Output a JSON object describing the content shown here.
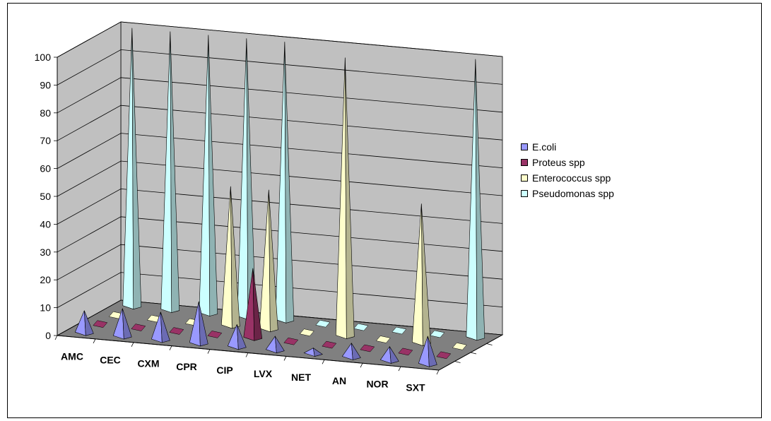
{
  "chart_data": {
    "type": "bar",
    "style": "3d-cone",
    "categories": [
      "AMC",
      "CEC",
      "CXM",
      "CPR",
      "CIP",
      "LVX",
      "NET",
      "AN",
      "NOR",
      "SXT"
    ],
    "series": [
      {
        "name": "E.coli",
        "color": "#9999ff",
        "values": [
          8,
          10,
          10,
          15,
          8,
          5,
          2,
          5,
          5,
          10
        ]
      },
      {
        "name": "Proteus spp",
        "color": "#993366",
        "values": [
          0,
          0,
          0,
          0,
          25,
          0,
          0,
          0,
          0,
          0
        ]
      },
      {
        "name": "Enterococcus spp",
        "color": "#ffffcc",
        "values": [
          0,
          0,
          0,
          50,
          50,
          0,
          100,
          0,
          50,
          0
        ]
      },
      {
        "name": "Pseudomonas spp",
        "color": "#ccffff",
        "values": [
          100,
          100,
          100,
          100,
          100,
          0,
          0,
          0,
          0,
          100
        ]
      }
    ],
    "ylim": [
      0,
      100
    ],
    "yticks": [
      "0",
      "10",
      "20",
      "30",
      "40",
      "50",
      "60",
      "70",
      "80",
      "90",
      "100"
    ],
    "title": "",
    "xlabel": "",
    "ylabel": "",
    "grid": true,
    "legend_position": "right",
    "colors": {
      "back_wall": "#c0c0c0",
      "floor": "#808080",
      "axis": "#000000"
    }
  }
}
